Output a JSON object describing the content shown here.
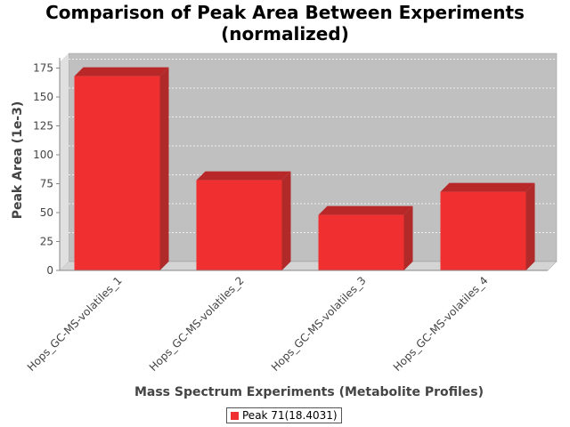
{
  "chart_data": {
    "type": "bar",
    "title_line1": "Comparison of Peak Area Between Experiments",
    "title_line2": "(normalized)",
    "xlabel": "Mass Spectrum Experiments (Metabolite Profiles)",
    "ylabel": "Peak Area (1e-3)",
    "categories": [
      "Hops_GC-MS-volatiles_1",
      "Hops_GC-MS-volatiles_2",
      "Hops_GC-MS-volatiles_3",
      "Hops_GC-MS-volatiles_4"
    ],
    "series": [
      {
        "name": "Peak 71(18.4031)",
        "values": [
          168,
          78,
          48,
          68
        ],
        "color": "#f03030"
      }
    ],
    "ylim": [
      0,
      180
    ],
    "yticks": [
      0,
      25,
      50,
      75,
      100,
      125,
      150,
      175
    ],
    "grid": true,
    "legend_position": "bottom",
    "plot_background": "#c0c0c0"
  }
}
